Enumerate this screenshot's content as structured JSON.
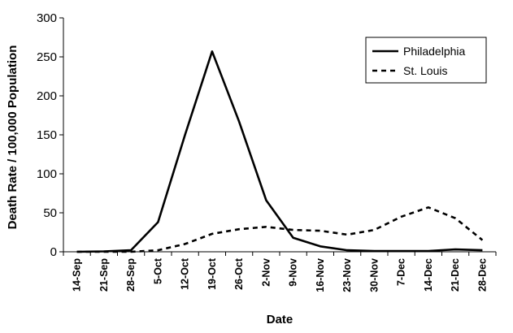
{
  "chart_data": {
    "type": "line",
    "title": "",
    "xlabel": "Date",
    "ylabel": "Death Rate / 100,000 Population",
    "ylim": [
      0,
      300
    ],
    "yticks": [
      0,
      50,
      100,
      150,
      200,
      250,
      300
    ],
    "categories": [
      "14-Sep",
      "21-Sep",
      "28-Sep",
      "5-Oct",
      "12-Oct",
      "19-Oct",
      "26-Oct",
      "2-Nov",
      "9-Nov",
      "16-Nov",
      "23-Nov",
      "30-Nov",
      "7-Dec",
      "14-Dec",
      "21-Dec",
      "28-Dec"
    ],
    "series": [
      {
        "name": "Philadelphia",
        "style": "solid",
        "color": "#000000",
        "values": [
          0,
          0.5,
          2,
          38,
          150,
          257,
          167,
          66,
          18,
          7,
          2,
          1,
          1,
          1,
          3,
          2
        ]
      },
      {
        "name": "St. Louis",
        "style": "dashed",
        "color": "#000000",
        "values": [
          0,
          0,
          0,
          2,
          10,
          23,
          29,
          32,
          28,
          27,
          22,
          28,
          45,
          57,
          43,
          15
        ]
      }
    ],
    "grid": false,
    "legend_position": "top-right"
  }
}
